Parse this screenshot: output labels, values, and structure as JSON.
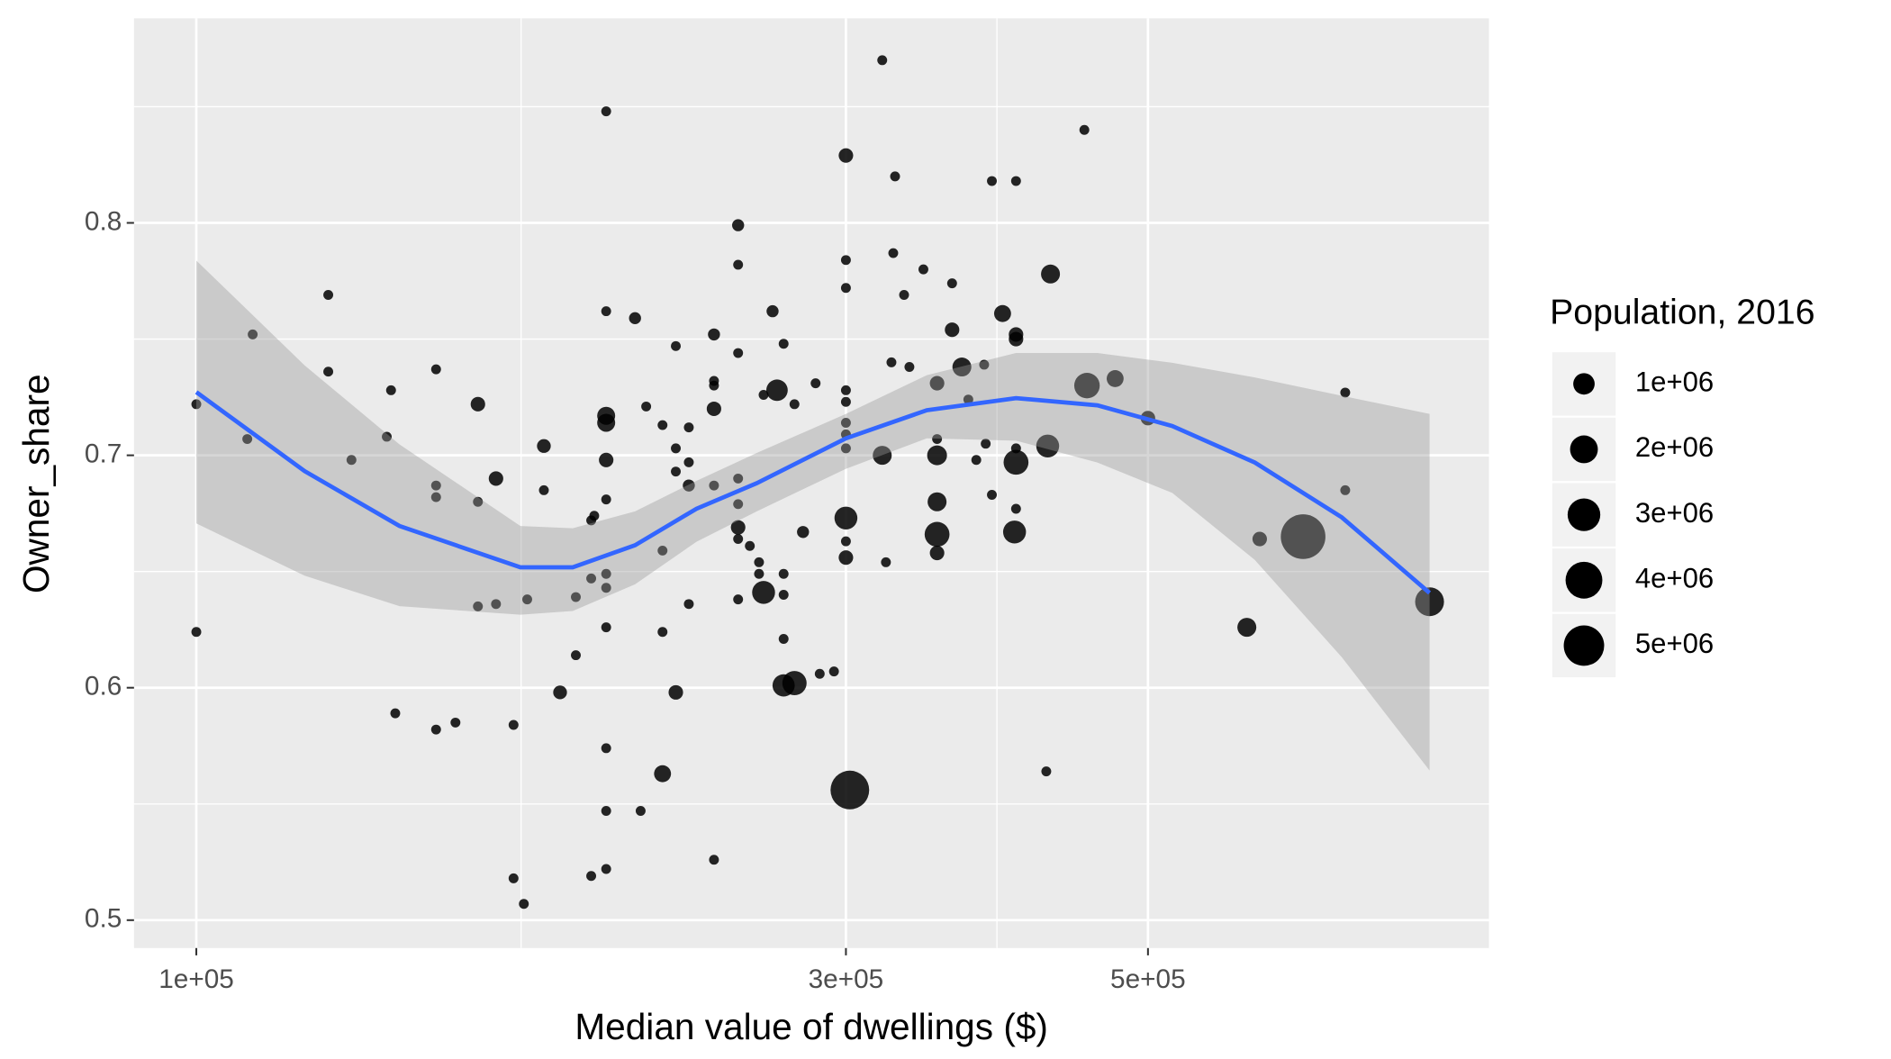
{
  "chart_data": {
    "type": "scatter",
    "x_label": "Median value of dwellings ($)",
    "y_label": "Owner_share",
    "xscale": "log",
    "grid": true,
    "point_color": "#000000",
    "xlim": [
      90000,
      890000
    ],
    "ylim": [
      0.488,
      0.888
    ],
    "xticks": [
      {
        "value": 100000,
        "label": "1e+05"
      },
      {
        "value": 300000,
        "label": "3e+05"
      },
      {
        "value": 500000,
        "label": "5e+05"
      }
    ],
    "yticks": [
      0.5,
      0.6,
      0.7,
      0.8
    ],
    "x": [
      100000,
      100000,
      110000,
      109000,
      125000,
      125000,
      130000,
      139000,
      138000,
      140000,
      150000,
      150000,
      150000,
      150000,
      155000,
      161000,
      161000,
      161000,
      166000,
      166000,
      171000,
      171000,
      174000,
      175000,
      180000,
      180000,
      185000,
      190000,
      190000,
      195000,
      195000,
      196000,
      195000,
      200000,
      200000,
      200000,
      200000,
      200000,
      200000,
      200000,
      200000,
      200000,
      200000,
      200000,
      200000,
      210000,
      214000,
      212000,
      220000,
      220000,
      220000,
      220000,
      225000,
      225000,
      225000,
      225000,
      230000,
      230000,
      230000,
      230000,
      240000,
      240000,
      240000,
      240000,
      240000,
      240000,
      250000,
      250000,
      250000,
      250000,
      250000,
      250000,
      250000,
      250000,
      255000,
      259000,
      259000,
      261000,
      261000,
      265000,
      267000,
      270000,
      270000,
      270000,
      270000,
      270000,
      275000,
      275000,
      279000,
      285000,
      287000,
      294000,
      300000,
      300000,
      300000,
      300000,
      300000,
      300000,
      300000,
      300000,
      300000,
      300000,
      300000,
      302000,
      319000,
      326000,
      325000,
      331000,
      324000,
      334000,
      319000,
      321000,
      342000,
      350000,
      359000,
      359000,
      350000,
      350000,
      350000,
      350000,
      350000,
      365000,
      369000,
      374000,
      379000,
      384000,
      384000,
      380000,
      391000,
      400000,
      400000,
      400000,
      400000,
      400000,
      400000,
      399000,
      421000,
      424000,
      422000,
      449000,
      451000,
      473000,
      500000,
      591000,
      604000,
      650000,
      698000,
      698000,
      805000
    ],
    "y": [
      0.722,
      0.624,
      0.752,
      0.707,
      0.769,
      0.736,
      0.698,
      0.728,
      0.708,
      0.589,
      0.737,
      0.687,
      0.682,
      0.582,
      0.585,
      0.722,
      0.68,
      0.635,
      0.69,
      0.636,
      0.584,
      0.518,
      0.507,
      0.638,
      0.704,
      0.685,
      0.598,
      0.639,
      0.614,
      0.672,
      0.519,
      0.674,
      0.647,
      0.848,
      0.762,
      0.717,
      0.714,
      0.698,
      0.681,
      0.649,
      0.643,
      0.626,
      0.574,
      0.547,
      0.522,
      0.759,
      0.721,
      0.547,
      0.713,
      0.659,
      0.624,
      0.563,
      0.747,
      0.703,
      0.693,
      0.598,
      0.712,
      0.697,
      0.687,
      0.636,
      0.752,
      0.732,
      0.73,
      0.72,
      0.687,
      0.526,
      0.799,
      0.782,
      0.744,
      0.69,
      0.679,
      0.669,
      0.664,
      0.638,
      0.661,
      0.654,
      0.649,
      0.641,
      0.726,
      0.762,
      0.728,
      0.748,
      0.649,
      0.64,
      0.621,
      0.601,
      0.602,
      0.722,
      0.667,
      0.731,
      0.606,
      0.607,
      0.829,
      0.784,
      0.772,
      0.728,
      0.723,
      0.714,
      0.709,
      0.703,
      0.673,
      0.663,
      0.656,
      0.556,
      0.87,
      0.82,
      0.787,
      0.769,
      0.74,
      0.738,
      0.7,
      0.654,
      0.78,
      0.731,
      0.774,
      0.754,
      0.707,
      0.7,
      0.68,
      0.666,
      0.658,
      0.738,
      0.724,
      0.698,
      0.739,
      0.818,
      0.683,
      0.705,
      0.761,
      0.752,
      0.75,
      0.818,
      0.703,
      0.697,
      0.677,
      0.667,
      0.564,
      0.778,
      0.704,
      0.84,
      0.73,
      0.733,
      0.716,
      0.626,
      0.664,
      0.665,
      0.727,
      0.685,
      0.637
    ],
    "size": [
      60000,
      60000,
      60000,
      60000,
      60000,
      60000,
      60000,
      60000,
      60000,
      60000,
      60000,
      60000,
      60000,
      60000,
      60000,
      300000,
      60000,
      60000,
      300000,
      60000,
      60000,
      60000,
      60000,
      60000,
      250000,
      60000,
      250000,
      60000,
      60000,
      60000,
      60000,
      60000,
      60000,
      60000,
      60000,
      600000,
      600000,
      300000,
      60000,
      60000,
      60000,
      60000,
      60000,
      60000,
      60000,
      150000,
      60000,
      60000,
      60000,
      60000,
      60000,
      500000,
      60000,
      60000,
      60000,
      300000,
      60000,
      60000,
      150000,
      60000,
      150000,
      60000,
      60000,
      300000,
      60000,
      60000,
      150000,
      60000,
      60000,
      60000,
      60000,
      300000,
      60000,
      60000,
      60000,
      60000,
      60000,
      1200000,
      60000,
      150000,
      1000000,
      60000,
      60000,
      60000,
      60000,
      1100000,
      1400000,
      60000,
      150000,
      60000,
      60000,
      60000,
      300000,
      60000,
      60000,
      60000,
      60000,
      60000,
      60000,
      60000,
      1200000,
      60000,
      300000,
      4500000,
      60000,
      60000,
      60000,
      60000,
      60000,
      60000,
      700000,
      60000,
      60000,
      300000,
      60000,
      300000,
      60000,
      800000,
      700000,
      1500000,
      300000,
      700000,
      60000,
      60000,
      60000,
      60000,
      60000,
      60000,
      500000,
      300000,
      300000,
      60000,
      60000,
      1500000,
      60000,
      1200000,
      60000,
      700000,
      1200000,
      60000,
      1600000,
      500000,
      300000,
      700000,
      300000,
      6300000,
      60000,
      60000,
      2200000
    ],
    "smooth": {
      "color": "#3366FF",
      "x": [
        100000,
        120100,
        141000,
        173000,
        189000,
        210000,
        233000,
        258000,
        300000,
        344000,
        400000,
        459000,
        521000,
        599000,
        694000,
        805000
      ],
      "y": [
        0.7272,
        0.6932,
        0.6696,
        0.6518,
        0.6518,
        0.6613,
        0.677,
        0.688,
        0.7073,
        0.7194,
        0.7246,
        0.7215,
        0.7126,
        0.6969,
        0.6733,
        0.6408
      ],
      "ymin": [
        0.6707,
        0.6482,
        0.6351,
        0.6314,
        0.633,
        0.6445,
        0.6628,
        0.6759,
        0.6942,
        0.7073,
        0.7063,
        0.6969,
        0.6838,
        0.655,
        0.6131,
        0.5644
      ],
      "ymax": [
        0.7838,
        0.7387,
        0.7047,
        0.6696,
        0.6686,
        0.6759,
        0.689,
        0.701,
        0.7178,
        0.7345,
        0.744,
        0.744,
        0.7398,
        0.7335,
        0.7256,
        0.7178
      ]
    },
    "size_legend": {
      "title": "Population, 2016",
      "breaks": [
        {
          "value": 1000000,
          "label": "1e+06"
        },
        {
          "value": 2000000,
          "label": "2e+06"
        },
        {
          "value": 3000000,
          "label": "3e+06"
        },
        {
          "value": 4000000,
          "label": "4e+06"
        },
        {
          "value": 5000000,
          "label": "5e+06"
        }
      ]
    }
  }
}
